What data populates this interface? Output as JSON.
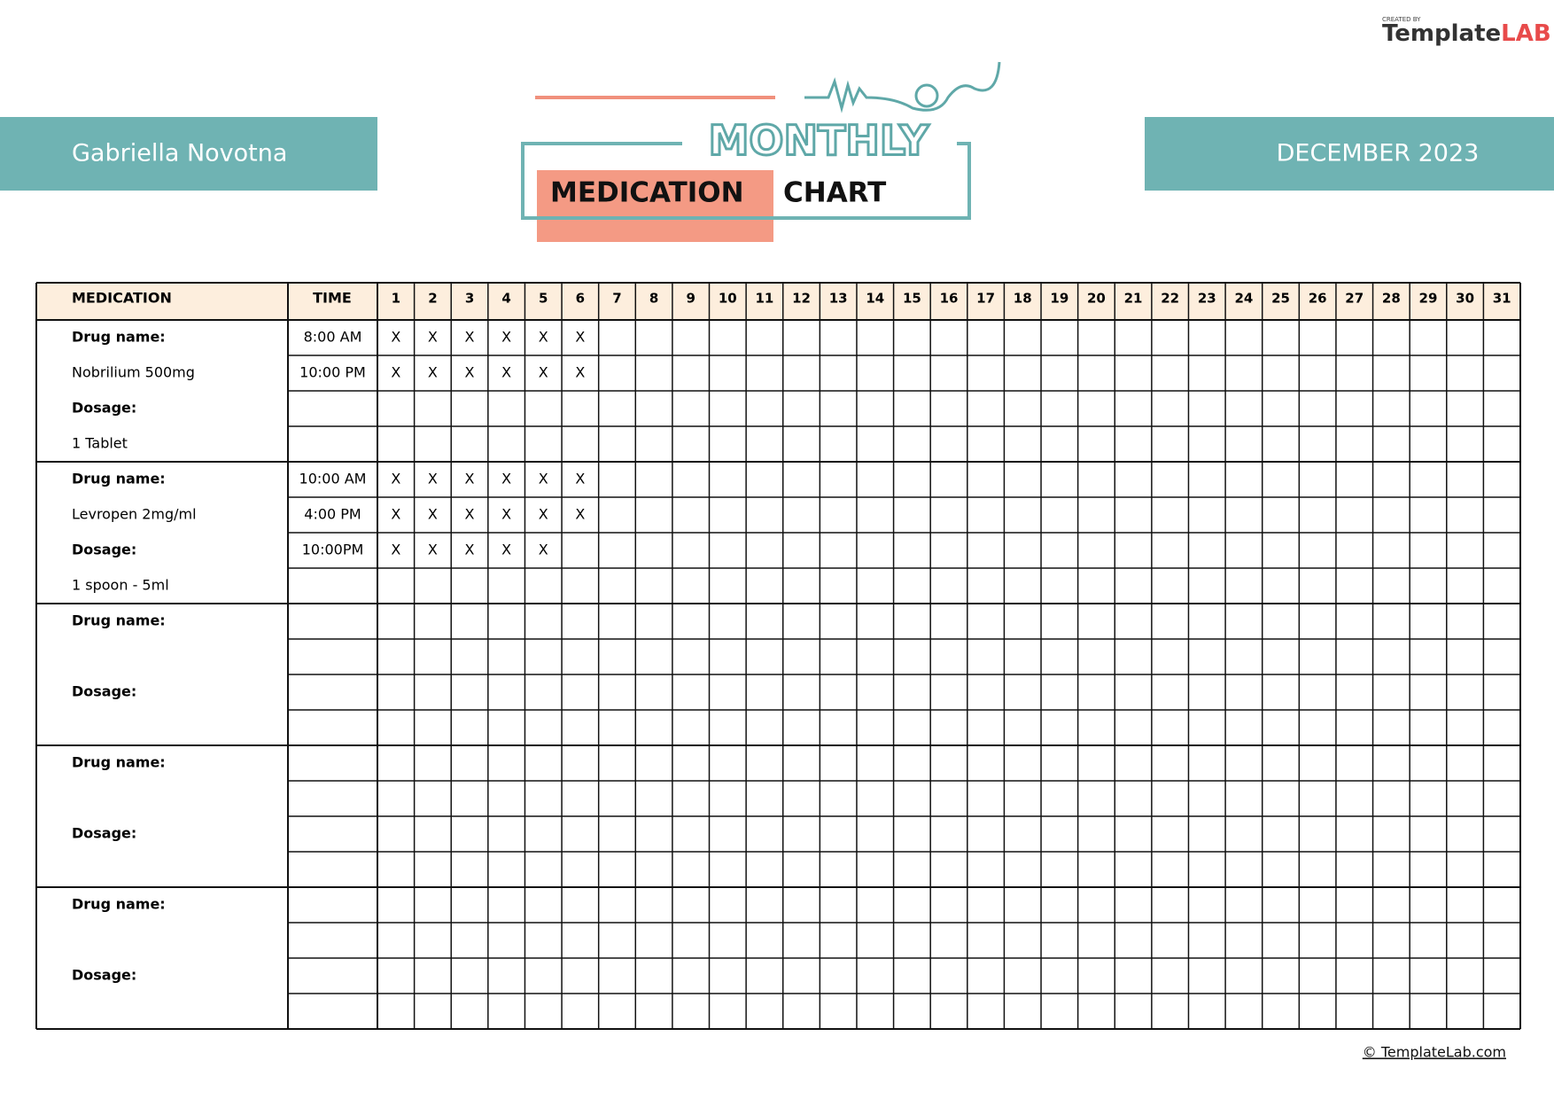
{
  "logo": {
    "small": "CREATED BY",
    "brand": "Template",
    "brand_accent": "LAB"
  },
  "header": {
    "patient": "Gabriella Novotna",
    "month": "DECEMBER 2023",
    "title_top": "MONTHLY",
    "title_main": "MEDICATION",
    "title_end": "CHART"
  },
  "table": {
    "columns": [
      "MEDICATION",
      "TIME"
    ],
    "days": [
      "1",
      "2",
      "3",
      "4",
      "5",
      "6",
      "7",
      "8",
      "9",
      "10",
      "11",
      "12",
      "13",
      "14",
      "15",
      "16",
      "17",
      "18",
      "19",
      "20",
      "21",
      "22",
      "23",
      "24",
      "25",
      "26",
      "27",
      "28",
      "29",
      "30",
      "31"
    ],
    "groups": [
      {
        "drug_label": "Drug name:",
        "drug": "Nobrilium 500mg",
        "dosage_label": "Dosage:",
        "dosage": "1 Tablet",
        "rows": [
          {
            "time": "8:00 AM",
            "marks": [
              "X",
              "X",
              "X",
              "X",
              "X",
              "X"
            ]
          },
          {
            "time": "10:00 PM",
            "marks": [
              "X",
              "X",
              "X",
              "X",
              "X",
              "X"
            ]
          }
        ]
      },
      {
        "drug_label": "Drug name:",
        "drug": "Levropen 2mg/ml",
        "dosage_label": "Dosage:",
        "dosage": "1 spoon - 5ml",
        "rows": [
          {
            "time": "10:00 AM",
            "marks": [
              "X",
              "X",
              "X",
              "X",
              "X",
              "X"
            ]
          },
          {
            "time": "4:00 PM",
            "marks": [
              "X",
              "X",
              "X",
              "X",
              "X",
              "X"
            ]
          },
          {
            "time": "10:00PM",
            "marks": [
              "X",
              "X",
              "X",
              "X",
              "X"
            ]
          }
        ]
      },
      {
        "drug_label": "Drug name:",
        "dosage_label": "Dosage:"
      },
      {
        "drug_label": "Drug name:",
        "dosage_label": "Dosage:"
      },
      {
        "drug_label": "Drug name:",
        "dosage_label": "Dosage:"
      }
    ]
  },
  "footer": {
    "credit": "© TemplateLab.com"
  }
}
